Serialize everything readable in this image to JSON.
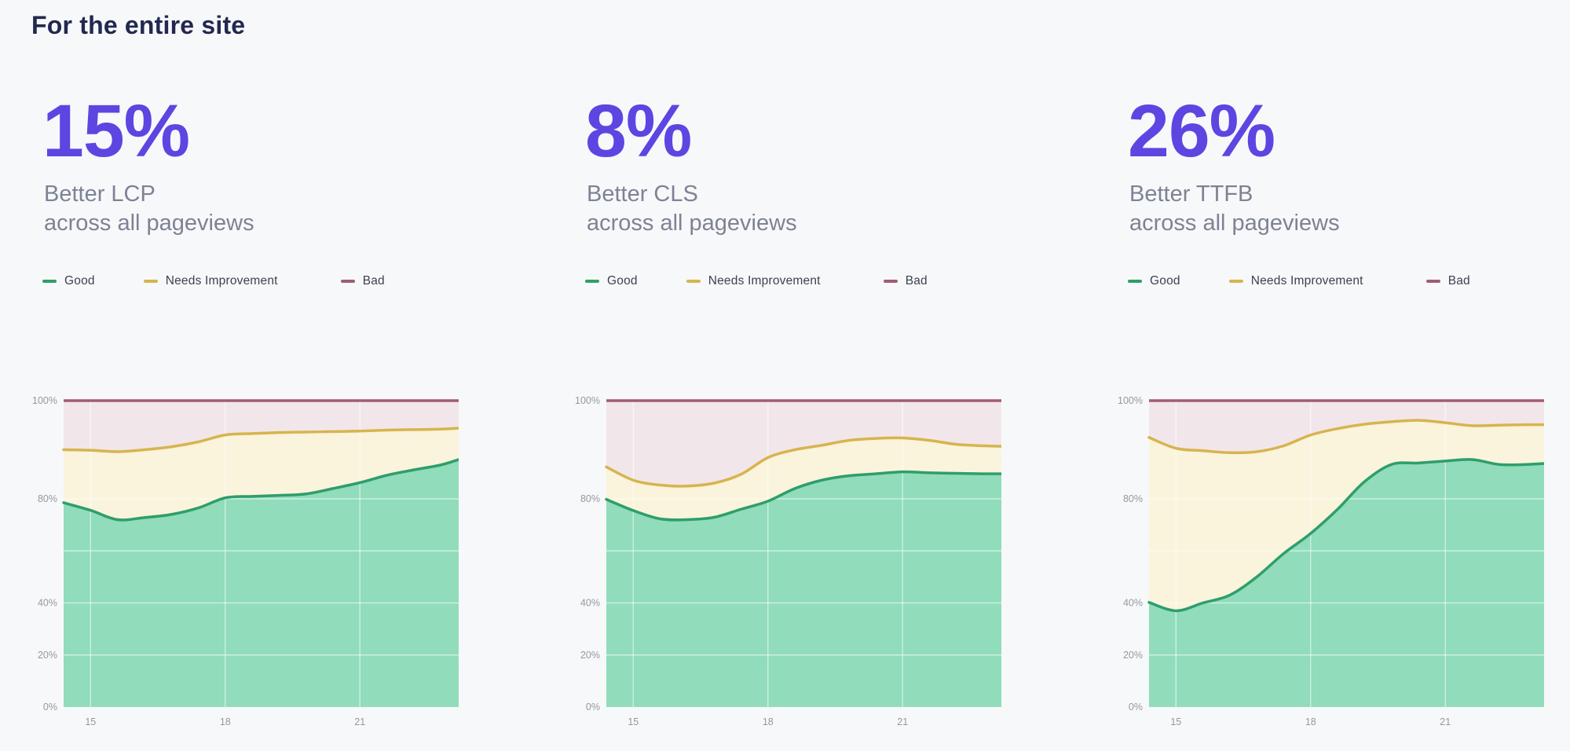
{
  "page_title": "For the entire site",
  "colors": {
    "background": "#f7f8fa",
    "accent": "#5d45e2",
    "title": "#232850",
    "subtitle": "#7d8394",
    "legend_text": "#3d4250",
    "axis_labels": "#9598a2",
    "gridline": "#ffffff",
    "good_line": "#2f9e6a",
    "good_fill": "#90dcbb",
    "needs_improvement_line": "#d7b44e",
    "needs_improvement_fill": "#faf4dc",
    "bad_line": "#a15c73",
    "bad_fill": "#f1e7ea"
  },
  "legend": [
    {
      "label": "Good",
      "color": "#2f9e6a"
    },
    {
      "label": "Needs Improvement",
      "color": "#d7b44e"
    },
    {
      "label": "Bad",
      "color": "#a15c73"
    }
  ],
  "cards": [
    {
      "metric": "15%",
      "subtitle_line1": "Better LCP",
      "subtitle_line2": "across all pageviews"
    },
    {
      "metric": "8%",
      "subtitle_line1": "Better CLS",
      "subtitle_line2": "across all pageviews"
    },
    {
      "metric": "26%",
      "subtitle_line1": "Better TTFB",
      "subtitle_line2": "across all pageviews"
    }
  ],
  "chart_data": [
    {
      "type": "area",
      "stacked": true,
      "title": "LCP distribution over time",
      "xlabel": "",
      "ylabel": "",
      "x_range": [
        14.4,
        23.2
      ],
      "x_ticks": [
        15,
        18,
        21
      ],
      "y_ticks_labels": [
        "0%",
        "20%",
        "40%",
        "80%",
        "100%"
      ],
      "y_gridlines": [
        20,
        40,
        60,
        80
      ],
      "y_scale_note": "piecewise linear: 0-80% compressed, 80-100% stretched ~1.9x",
      "legend_position": "top",
      "x": [
        14.4,
        15,
        15.6,
        16.2,
        16.8,
        17.4,
        18,
        18.6,
        19.2,
        19.8,
        20.4,
        21,
        21.6,
        22.2,
        22.8,
        23.2
      ],
      "series": [
        {
          "name": "Good",
          "values": [
            78.5,
            75.6,
            72.0,
            72.8,
            74.0,
            76.5,
            80.2,
            80.5,
            80.7,
            81.0,
            82.1,
            83.3,
            84.8,
            85.9,
            86.9,
            88.0
          ]
        },
        {
          "name": "Needs Improvement",
          "values": [
            11.5,
            14.3,
            17.6,
            17.2,
            16.6,
            15.1,
            12.8,
            12.8,
            12.8,
            12.6,
            11.6,
            10.5,
            9.2,
            8.2,
            7.3,
            6.4
          ]
        },
        {
          "name": "Bad",
          "values": [
            10.0,
            10.1,
            10.4,
            10.0,
            9.4,
            8.4,
            7.0,
            6.7,
            6.5,
            6.4,
            6.3,
            6.2,
            6.0,
            5.9,
            5.8,
            5.6
          ]
        }
      ]
    },
    {
      "type": "area",
      "stacked": true,
      "title": "CLS distribution over time",
      "xlabel": "",
      "ylabel": "",
      "x_range": [
        14.4,
        23.2
      ],
      "x_ticks": [
        15,
        18,
        21
      ],
      "y_ticks_labels": [
        "0%",
        "20%",
        "40%",
        "80%",
        "100%"
      ],
      "y_gridlines": [
        20,
        40,
        60,
        80
      ],
      "y_scale_note": "piecewise linear: 0-80% compressed, 80-100% stretched ~1.9x",
      "legend_position": "top",
      "x": [
        14.4,
        15,
        15.6,
        16.2,
        16.8,
        17.4,
        18,
        18.6,
        19.2,
        19.8,
        20.4,
        21,
        21.6,
        22.2,
        22.8,
        23.2
      ],
      "series": [
        {
          "name": "Good",
          "values": [
            79.8,
            75.5,
            72.3,
            72.0,
            72.9,
            76.0,
            79.1,
            82.1,
            83.8,
            84.7,
            85.1,
            85.5,
            85.3,
            85.2,
            85.1,
            85.1
          ]
        },
        {
          "name": "Needs Improvement",
          "values": [
            6.7,
            8.3,
            10.5,
            10.6,
            10.3,
            9.0,
            9.3,
            7.9,
            7.1,
            7.2,
            7.2,
            6.9,
            6.6,
            5.9,
            5.7,
            5.6
          ]
        },
        {
          "name": "Bad",
          "values": [
            13.5,
            16.2,
            17.2,
            17.4,
            16.8,
            15.0,
            11.6,
            10.0,
            9.1,
            8.1,
            7.7,
            7.6,
            8.1,
            8.9,
            9.2,
            9.3
          ]
        }
      ]
    },
    {
      "type": "area",
      "stacked": true,
      "title": "TTFB distribution over time",
      "xlabel": "",
      "ylabel": "",
      "x_range": [
        14.4,
        23.2
      ],
      "x_ticks": [
        15,
        18,
        21
      ],
      "y_ticks_labels": [
        "0%",
        "20%",
        "40%",
        "80%",
        "100%"
      ],
      "y_gridlines": [
        20,
        40,
        60,
        80
      ],
      "y_scale_note": "piecewise linear: 0-80% compressed, 80-100% stretched ~1.9x",
      "legend_position": "top",
      "x": [
        14.4,
        15,
        15.6,
        16.2,
        16.8,
        17.4,
        18,
        18.6,
        19.2,
        19.8,
        20.4,
        21,
        21.6,
        22.2,
        22.8,
        23.2
      ],
      "series": [
        {
          "name": "Good",
          "values": [
            40.2,
            37.0,
            40.0,
            43.0,
            50.0,
            59.0,
            66.7,
            76.0,
            83.5,
            87.0,
            87.3,
            87.7,
            88.0,
            87.0,
            87.0,
            87.2
          ]
        },
        {
          "name": "Needs Improvement",
          "values": [
            52.3,
            53.3,
            49.8,
            46.4,
            39.6,
            31.8,
            26.3,
            18.3,
            11.7,
            8.7,
            8.7,
            7.8,
            6.9,
            8.0,
            8.1,
            7.9
          ]
        },
        {
          "name": "Bad",
          "values": [
            7.5,
            9.7,
            10.2,
            10.6,
            10.4,
            9.2,
            7.0,
            5.7,
            4.8,
            4.3,
            4.0,
            4.5,
            5.1,
            5.0,
            4.9,
            4.9
          ]
        }
      ]
    }
  ]
}
